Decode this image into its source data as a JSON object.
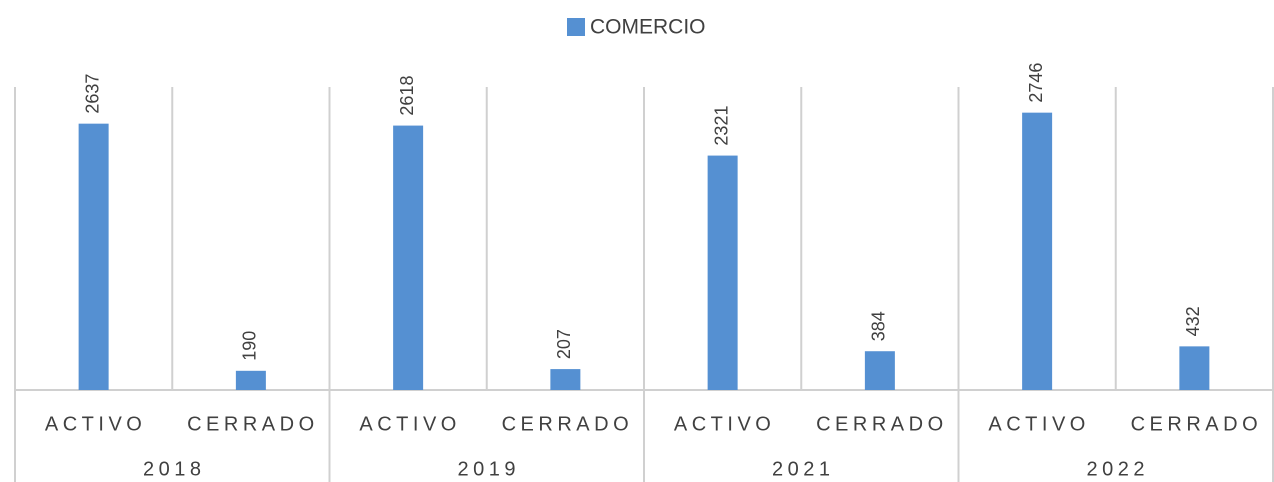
{
  "chart_data": {
    "type": "bar",
    "legend": "top",
    "categories": [
      "ACTIVO",
      "CERRADO",
      "ACTIVO",
      "CERRADO",
      "ACTIVO",
      "CERRADO",
      "ACTIVO",
      "CERRADO"
    ],
    "groups": [
      "2018",
      "2019",
      "2021",
      "2022"
    ],
    "series": [
      {
        "name": "COMERCIO",
        "color": "#5590d2",
        "values": [
          2637,
          190,
          2618,
          207,
          2321,
          384,
          2746,
          432
        ]
      }
    ],
    "ylim": [
      0,
      3000
    ],
    "grid": true
  }
}
